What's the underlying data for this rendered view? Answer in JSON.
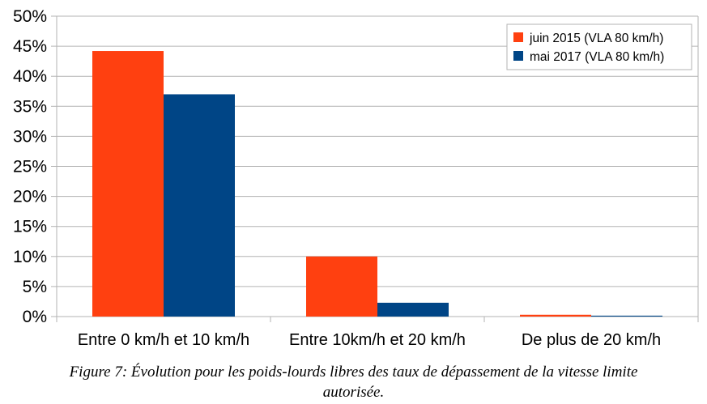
{
  "chart_data": {
    "type": "bar",
    "categories": [
      "Entre 0 km/h et 10 km/h",
      "Entre 10km/h et 20 km/h",
      "De plus de 20 km/h"
    ],
    "series": [
      {
        "name": "juin 2015 (VLA 80 km/h)",
        "color": "#ff4010",
        "values": [
          44.2,
          10.0,
          0.3
        ]
      },
      {
        "name": "mai 2017 (VLA 80 km/h)",
        "color": "#004586",
        "values": [
          37.0,
          2.3,
          0.15
        ]
      }
    ],
    "y_ticks": [
      "0%",
      "5%",
      "10%",
      "15%",
      "20%",
      "25%",
      "30%",
      "35%",
      "40%",
      "45%",
      "50%"
    ],
    "ylim": [
      0,
      50
    ],
    "grid": true,
    "legend_position": "top-right"
  },
  "caption": {
    "line1": "Figure 7: Évolution pour les poids-lourds libres des taux de dépassement de la vitesse limite",
    "line2": "autorisée."
  }
}
